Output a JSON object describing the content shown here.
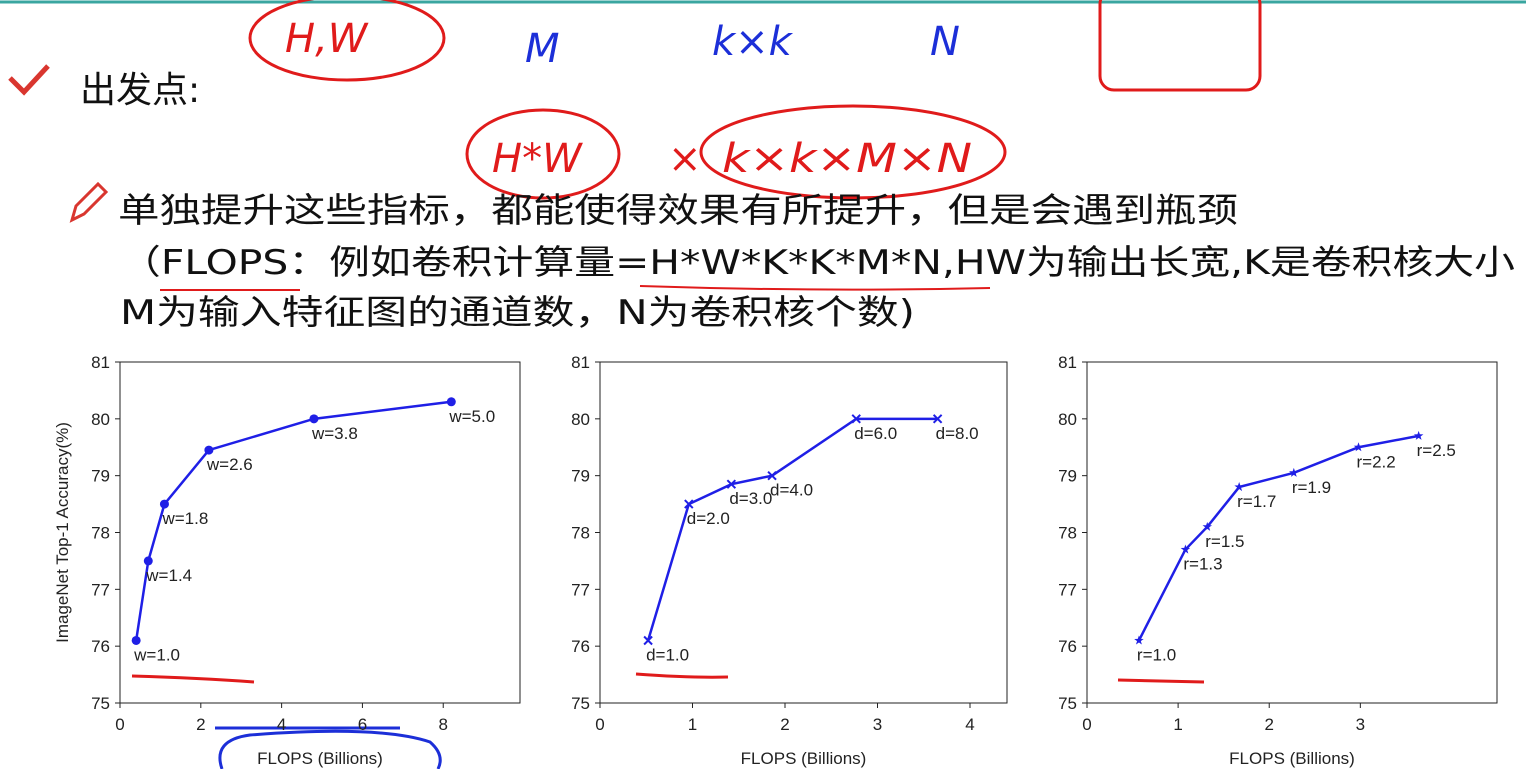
{
  "header": {
    "title": "出发点:"
  },
  "bullets": [
    "单独提升这些指标，都能使得效果有所提升，但是会遇到瓶颈",
    "（FLOPS：例如卷积计算量=H*W*K*K*M*N,HW为输出长宽,K是卷积核大小",
    "M为输入特征图的通道数，N为卷积核个数)"
  ],
  "annotations": [
    "H,W",
    "M",
    "k×k",
    "N",
    "H*W",
    "×",
    "k×k×M×N"
  ],
  "chart_data": [
    {
      "type": "line",
      "marker": "circle",
      "color": "#1f1fe6",
      "ylabel": "ImageNet Top-1 Accuracy(%)",
      "xlabel": "FLOPS (Billions)",
      "x": [
        0.4,
        0.7,
        1.1,
        2.2,
        4.8,
        8.2
      ],
      "values": [
        76.1,
        77.5,
        78.5,
        79.45,
        80.0,
        80.3
      ],
      "point_labels": [
        "w=1.0",
        "w=1.4",
        "w=1.8",
        "w=2.6",
        "w=3.8",
        "w=5.0"
      ],
      "xlim": [
        0,
        9.9
      ],
      "xticks": [
        0,
        2,
        4,
        6,
        8
      ],
      "ylim": [
        75,
        81
      ],
      "yticks": [
        75,
        76,
        77,
        78,
        79,
        80,
        81
      ]
    },
    {
      "type": "line",
      "marker": "x",
      "color": "#1f1fe6",
      "xlabel": "FLOPS (Billions)",
      "x": [
        0.52,
        0.96,
        1.42,
        1.86,
        2.77,
        3.65
      ],
      "values": [
        76.1,
        78.5,
        78.85,
        79.0,
        80.0,
        80.0
      ],
      "point_labels": [
        "d=1.0",
        "d=2.0",
        "d=3.0",
        "d=4.0",
        "d=6.0",
        "d=8.0"
      ],
      "xlim": [
        0,
        4.4
      ],
      "xticks": [
        0,
        1,
        2,
        3,
        4
      ],
      "ylim": [
        75,
        81
      ],
      "yticks": [
        75,
        76,
        77,
        78,
        79,
        80,
        81
      ]
    },
    {
      "type": "line",
      "marker": "star",
      "color": "#1f1fe6",
      "xlabel": "FLOPS (Billions)",
      "x": [
        0.57,
        1.08,
        1.32,
        1.67,
        2.27,
        2.98,
        3.64
      ],
      "values": [
        76.1,
        77.7,
        78.1,
        78.8,
        79.05,
        79.5,
        79.7
      ],
      "point_labels": [
        "r=1.0",
        "r=1.3",
        "r=1.5",
        "r=1.7",
        "r=1.9",
        "r=2.2",
        "r=2.5"
      ],
      "xlim": [
        0,
        4.5
      ],
      "xticks": [
        0,
        1,
        2,
        3
      ],
      "ylim": [
        75,
        81
      ],
      "yticks": [
        75,
        76,
        77,
        78,
        79,
        80,
        81
      ]
    }
  ]
}
